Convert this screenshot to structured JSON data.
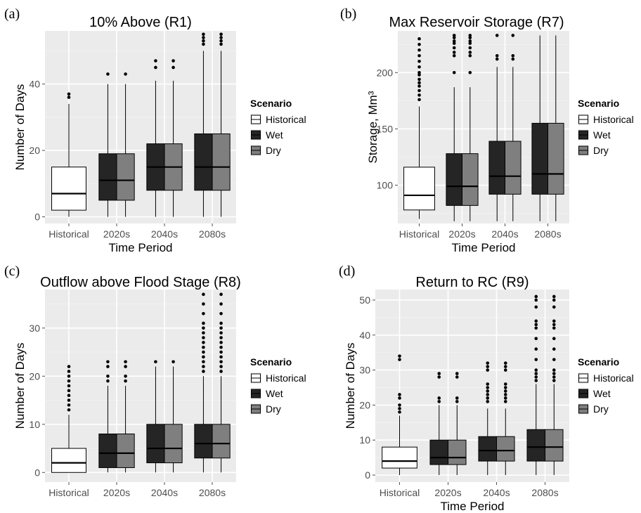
{
  "colors": {
    "panel_bg": "#ebebeb",
    "grid_major": "#ffffff",
    "grid_minor": "#f2f2f2",
    "box_line": "#000000",
    "tick_text": "#4d4d4d"
  },
  "legend": {
    "title": "Scenario",
    "items": [
      {
        "label": "Historical",
        "color": "#ffffff"
      },
      {
        "label": "Wet",
        "color": "#252525"
      },
      {
        "label": "Dry",
        "color": "#7f7f7f"
      }
    ]
  },
  "chart_data": [
    {
      "panel": "(a)",
      "type": "box",
      "title": "10% Above (R1)",
      "xlabel": "Time Period",
      "ylabel": "Number of Days",
      "categories": [
        "Historical",
        "2020s",
        "2040s",
        "2080s"
      ],
      "ylim": [
        -2,
        56
      ],
      "yticks": [
        0,
        20,
        40
      ],
      "boxes": [
        {
          "category": "Historical",
          "scenario": "Historical",
          "min": 0,
          "q1": 2,
          "median": 7,
          "q3": 15,
          "max": 34,
          "outliers": [
            36,
            37
          ]
        },
        {
          "category": "2020s",
          "scenario": "Wet",
          "min": 0,
          "q1": 5,
          "median": 11,
          "q3": 19,
          "max": 40,
          "outliers": [
            43
          ]
        },
        {
          "category": "2020s",
          "scenario": "Dry",
          "min": 0,
          "q1": 5,
          "median": 11,
          "q3": 19,
          "max": 40,
          "outliers": [
            43
          ]
        },
        {
          "category": "2040s",
          "scenario": "Wet",
          "min": 0,
          "q1": 8,
          "median": 15,
          "q3": 22,
          "max": 41,
          "outliers": [
            45,
            47
          ]
        },
        {
          "category": "2040s",
          "scenario": "Dry",
          "min": 0,
          "q1": 8,
          "median": 15,
          "q3": 22,
          "max": 41,
          "outliers": [
            45,
            47
          ]
        },
        {
          "category": "2080s",
          "scenario": "Wet",
          "min": 0,
          "q1": 8,
          "median": 15,
          "q3": 25,
          "max": 50,
          "outliers": [
            52,
            53,
            54,
            55
          ]
        },
        {
          "category": "2080s",
          "scenario": "Dry",
          "min": 0,
          "q1": 8,
          "median": 15,
          "q3": 25,
          "max": 50,
          "outliers": [
            52,
            53,
            54,
            55
          ]
        }
      ]
    },
    {
      "panel": "(b)",
      "type": "box",
      "title": "Max Reservoir Storage (R7)",
      "xlabel": "Time Period",
      "ylabel": "Storage, Mm³",
      "categories": [
        "Historical",
        "2020s",
        "2040s",
        "2080s"
      ],
      "ylim": [
        66,
        237
      ],
      "yticks": [
        100,
        150,
        200
      ],
      "boxes": [
        {
          "category": "Historical",
          "scenario": "Historical",
          "min": 70,
          "q1": 78,
          "median": 91,
          "q3": 116,
          "max": 170,
          "outliers": [
            176,
            180,
            184,
            188,
            191,
            194,
            198,
            200,
            205,
            210,
            215,
            220,
            225,
            230
          ]
        },
        {
          "category": "2020s",
          "scenario": "Wet",
          "min": 68,
          "q1": 82,
          "median": 99,
          "q3": 128,
          "max": 187,
          "outliers": [
            200,
            215,
            218,
            222,
            226,
            228,
            231,
            233
          ]
        },
        {
          "category": "2020s",
          "scenario": "Dry",
          "min": 68,
          "q1": 82,
          "median": 99,
          "q3": 128,
          "max": 187,
          "outliers": [
            200,
            215,
            218,
            222,
            226,
            228,
            231,
            233
          ]
        },
        {
          "category": "2040s",
          "scenario": "Wet",
          "min": 68,
          "q1": 92,
          "median": 108,
          "q3": 139,
          "max": 205,
          "outliers": [
            212,
            215,
            233
          ]
        },
        {
          "category": "2040s",
          "scenario": "Dry",
          "min": 68,
          "q1": 92,
          "median": 108,
          "q3": 139,
          "max": 205,
          "outliers": [
            212,
            215,
            233
          ]
        },
        {
          "category": "2080s",
          "scenario": "Wet",
          "min": 68,
          "q1": 92,
          "median": 110,
          "q3": 155,
          "max": 233,
          "outliers": []
        },
        {
          "category": "2080s",
          "scenario": "Dry",
          "min": 68,
          "q1": 92,
          "median": 110,
          "q3": 155,
          "max": 233,
          "outliers": []
        }
      ]
    },
    {
      "panel": "(c)",
      "type": "box",
      "title": "Outflow above Flood Stage (R8)",
      "xlabel": "",
      "ylabel": "Number of Days",
      "categories": [
        "Historical",
        "2020s",
        "2040s",
        "2080s"
      ],
      "ylim": [
        -2,
        38
      ],
      "yticks": [
        0,
        10,
        20,
        30
      ],
      "boxes": [
        {
          "category": "Historical",
          "scenario": "Historical",
          "min": 0,
          "q1": 0,
          "median": 2,
          "q3": 5,
          "max": 12,
          "outliers": [
            13,
            14,
            15,
            16,
            17,
            18,
            19,
            20,
            21,
            22
          ]
        },
        {
          "category": "2020s",
          "scenario": "Wet",
          "min": 0,
          "q1": 1,
          "median": 4,
          "q3": 8,
          "max": 18,
          "outliers": [
            19,
            20,
            22,
            23
          ]
        },
        {
          "category": "2020s",
          "scenario": "Dry",
          "min": 0,
          "q1": 1,
          "median": 4,
          "q3": 8,
          "max": 18,
          "outliers": [
            19,
            20,
            22,
            23
          ]
        },
        {
          "category": "2040s",
          "scenario": "Wet",
          "min": 0,
          "q1": 2,
          "median": 5,
          "q3": 10,
          "max": 22,
          "outliers": [
            23
          ]
        },
        {
          "category": "2040s",
          "scenario": "Dry",
          "min": 0,
          "q1": 2,
          "median": 5,
          "q3": 10,
          "max": 22,
          "outliers": [
            23
          ]
        },
        {
          "category": "2080s",
          "scenario": "Wet",
          "min": 0,
          "q1": 3,
          "median": 6,
          "q3": 10,
          "max": 20,
          "outliers": [
            21,
            22,
            23,
            24,
            25,
            26,
            27,
            28,
            29,
            30,
            31,
            33,
            35,
            37
          ]
        },
        {
          "category": "2080s",
          "scenario": "Dry",
          "min": 0,
          "q1": 3,
          "median": 6,
          "q3": 10,
          "max": 20,
          "outliers": [
            21,
            22,
            23,
            24,
            25,
            26,
            27,
            28,
            29,
            30,
            31,
            33,
            35,
            37
          ]
        }
      ]
    },
    {
      "panel": "(d)",
      "type": "box",
      "title": "Return to RC (R9)",
      "xlabel": "Time Period",
      "ylabel": "Number of Days",
      "categories": [
        "Historical",
        "2020s",
        "2040s",
        "2080s"
      ],
      "ylim": [
        -2,
        53
      ],
      "yticks": [
        0,
        10,
        20,
        30,
        40,
        50
      ],
      "boxes": [
        {
          "category": "Historical",
          "scenario": "Historical",
          "min": 0,
          "q1": 2,
          "median": 4,
          "q3": 8,
          "max": 17,
          "outliers": [
            18,
            19,
            20,
            22,
            23,
            33,
            34
          ]
        },
        {
          "category": "2020s",
          "scenario": "Wet",
          "min": 0,
          "q1": 3,
          "median": 5,
          "q3": 10,
          "max": 20,
          "outliers": [
            21,
            22,
            28,
            29
          ]
        },
        {
          "category": "2020s",
          "scenario": "Dry",
          "min": 0,
          "q1": 3,
          "median": 5,
          "q3": 10,
          "max": 20,
          "outliers": [
            21,
            22,
            28,
            29
          ]
        },
        {
          "category": "2040s",
          "scenario": "Wet",
          "min": 0,
          "q1": 4,
          "median": 7,
          "q3": 11,
          "max": 19,
          "outliers": [
            21,
            22,
            23,
            24,
            25,
            26,
            30,
            31,
            32
          ]
        },
        {
          "category": "2040s",
          "scenario": "Dry",
          "min": 0,
          "q1": 4,
          "median": 7,
          "q3": 11,
          "max": 19,
          "outliers": [
            21,
            22,
            23,
            24,
            25,
            26,
            30,
            31,
            32
          ]
        },
        {
          "category": "2080s",
          "scenario": "Wet",
          "min": 0,
          "q1": 4,
          "median": 8,
          "q3": 13,
          "max": 26,
          "outliers": [
            27,
            28,
            29,
            30,
            33,
            36,
            39,
            42,
            43,
            44,
            48,
            50,
            51
          ]
        },
        {
          "category": "2080s",
          "scenario": "Dry",
          "min": 0,
          "q1": 4,
          "median": 8,
          "q3": 13,
          "max": 26,
          "outliers": [
            27,
            28,
            29,
            30,
            33,
            36,
            39,
            42,
            43,
            44,
            48,
            50,
            51
          ]
        }
      ]
    }
  ]
}
